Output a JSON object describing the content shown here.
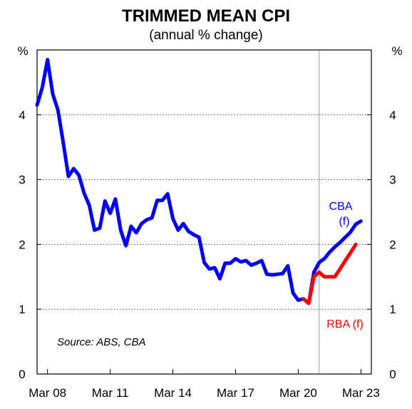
{
  "chart_data": {
    "type": "line",
    "title": "TRIMMED MEAN CPI",
    "subtitle": "(annual % change)",
    "ylabel_left": "%",
    "ylabel_right": "%",
    "ylim": [
      0,
      5
    ],
    "yticks": [
      0,
      1,
      2,
      3,
      4
    ],
    "xlim": [
      2007.75,
      2023.75
    ],
    "xticks": [
      {
        "label": "Mar 08",
        "x": 2008.25
      },
      {
        "label": "Mar 11",
        "x": 2011.25
      },
      {
        "label": "Mar 14",
        "x": 2014.25
      },
      {
        "label": "Mar 17",
        "x": 2017.25
      },
      {
        "label": "Mar 20",
        "x": 2020.25
      },
      {
        "label": "Mar 23",
        "x": 2023.25
      }
    ],
    "grid": "horizontal-dotted",
    "forecast_divider_x": 2021.25,
    "series": [
      {
        "name": "CBA (f)",
        "color": "#0000ff",
        "points": [
          [
            2007.75,
            4.15
          ],
          [
            2008.0,
            4.42
          ],
          [
            2008.25,
            4.85
          ],
          [
            2008.5,
            4.32
          ],
          [
            2008.75,
            4.07
          ],
          [
            2009.0,
            3.58
          ],
          [
            2009.25,
            3.05
          ],
          [
            2009.5,
            3.17
          ],
          [
            2009.75,
            3.07
          ],
          [
            2010.0,
            2.79
          ],
          [
            2010.25,
            2.6
          ],
          [
            2010.5,
            2.22
          ],
          [
            2010.75,
            2.25
          ],
          [
            2011.0,
            2.67
          ],
          [
            2011.25,
            2.48
          ],
          [
            2011.5,
            2.7
          ],
          [
            2011.75,
            2.22
          ],
          [
            2012.0,
            1.98
          ],
          [
            2012.25,
            2.28
          ],
          [
            2012.5,
            2.18
          ],
          [
            2012.75,
            2.32
          ],
          [
            2013.0,
            2.38
          ],
          [
            2013.25,
            2.41
          ],
          [
            2013.5,
            2.68
          ],
          [
            2013.75,
            2.68
          ],
          [
            2014.0,
            2.78
          ],
          [
            2014.25,
            2.4
          ],
          [
            2014.5,
            2.22
          ],
          [
            2014.75,
            2.32
          ],
          [
            2015.0,
            2.2
          ],
          [
            2015.25,
            2.15
          ],
          [
            2015.5,
            2.11
          ],
          [
            2015.75,
            1.72
          ],
          [
            2016.0,
            1.62
          ],
          [
            2016.25,
            1.64
          ],
          [
            2016.5,
            1.47
          ],
          [
            2016.75,
            1.71
          ],
          [
            2017.0,
            1.71
          ],
          [
            2017.25,
            1.78
          ],
          [
            2017.5,
            1.73
          ],
          [
            2017.75,
            1.75
          ],
          [
            2018.0,
            1.68
          ],
          [
            2018.25,
            1.71
          ],
          [
            2018.5,
            1.75
          ],
          [
            2018.75,
            1.54
          ],
          [
            2019.0,
            1.53
          ],
          [
            2019.25,
            1.54
          ],
          [
            2019.5,
            1.55
          ],
          [
            2019.75,
            1.67
          ],
          [
            2020.0,
            1.25
          ],
          [
            2020.25,
            1.14
          ],
          [
            2020.5,
            1.16
          ],
          [
            2020.75,
            1.09
          ],
          [
            2021.0,
            1.57
          ],
          [
            2021.25,
            1.72
          ],
          [
            2021.5,
            1.78
          ],
          [
            2021.75,
            1.88
          ],
          [
            2022.0,
            1.96
          ],
          [
            2022.25,
            2.03
          ],
          [
            2022.5,
            2.11
          ],
          [
            2022.75,
            2.19
          ],
          [
            2023.0,
            2.31
          ],
          [
            2023.25,
            2.36
          ]
        ]
      },
      {
        "name": "RBA (f)",
        "color": "#ff0000",
        "points": [
          [
            2020.5,
            1.16
          ],
          [
            2020.75,
            1.09
          ],
          [
            2021.0,
            1.5
          ],
          [
            2021.25,
            1.57
          ],
          [
            2021.5,
            1.5
          ],
          [
            2021.75,
            1.5
          ],
          [
            2022.0,
            1.5
          ],
          [
            2022.25,
            1.62
          ],
          [
            2022.5,
            1.75
          ],
          [
            2022.75,
            1.87
          ],
          [
            2023.0,
            2.0
          ]
        ]
      }
    ],
    "annotations": [
      {
        "text": "CBA",
        "color": "#0000ff"
      },
      {
        "text": "(f)",
        "color": "#0000ff"
      },
      {
        "text": "RBA (f)",
        "color": "#ff0000"
      },
      {
        "text": "Source: ABS, CBA",
        "color": "#000000"
      }
    ]
  }
}
